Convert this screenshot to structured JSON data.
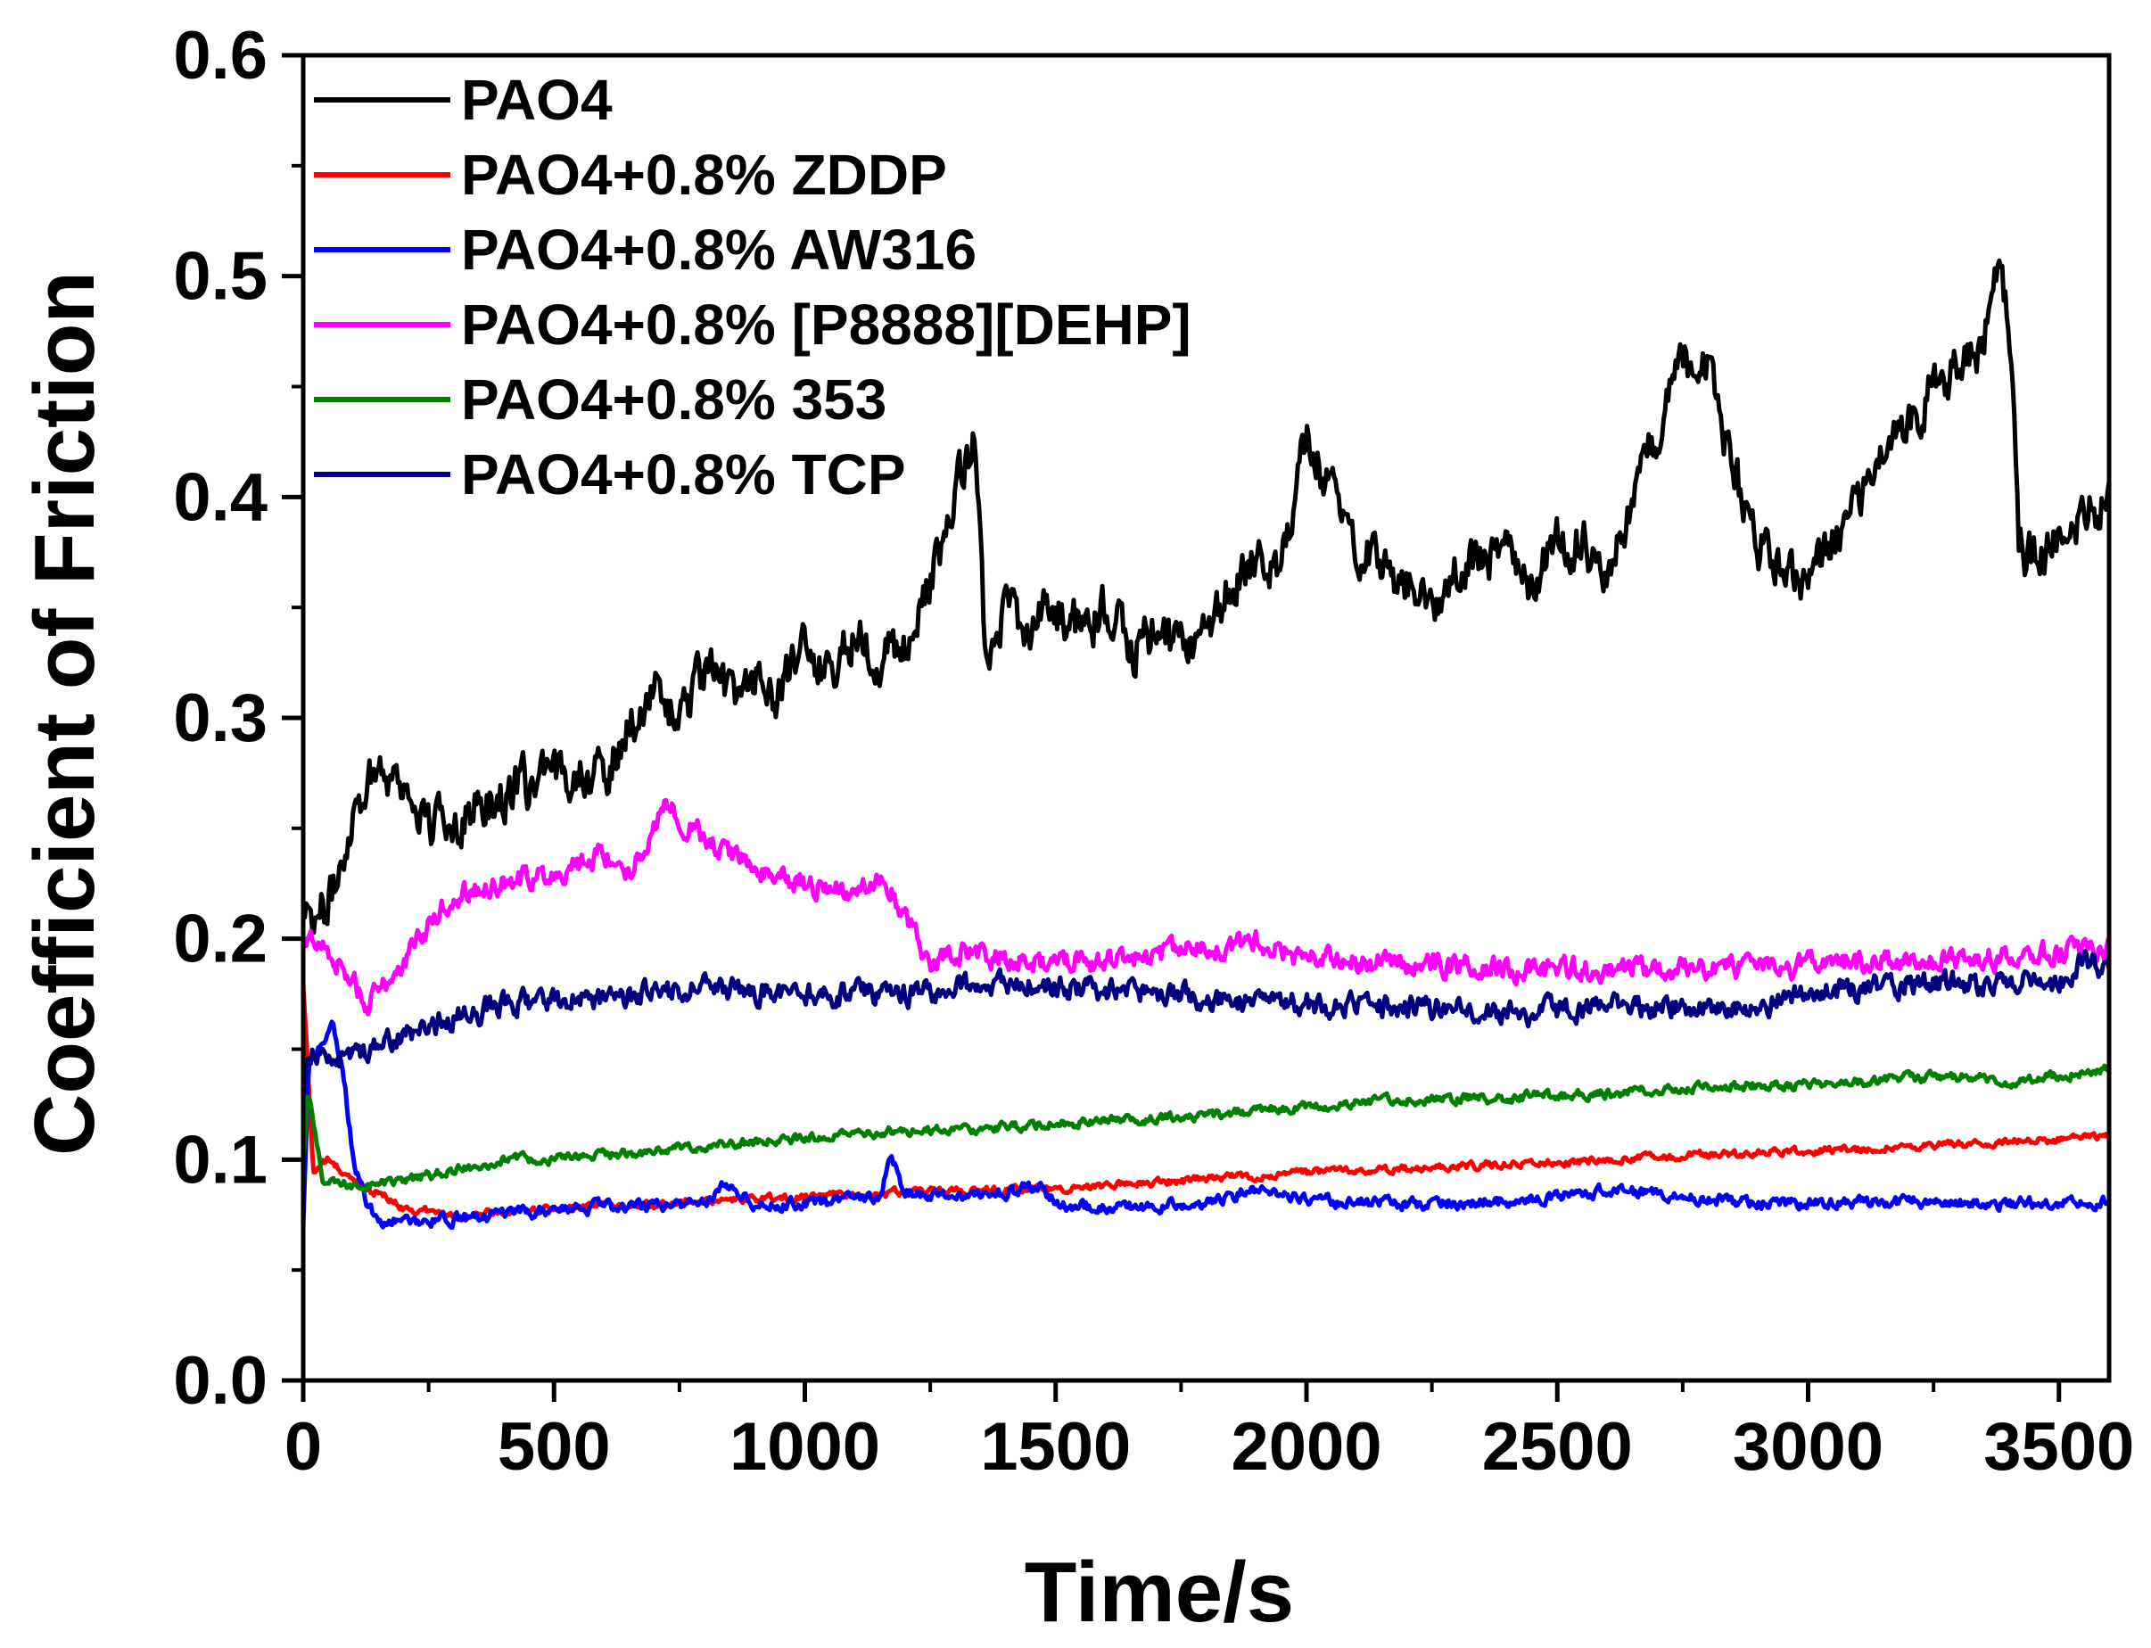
{
  "chart_data": {
    "type": "line",
    "title": "",
    "xlabel": "Time/s",
    "ylabel": "Coefficient of Friction",
    "xlim": [
      0,
      3600
    ],
    "ylim": [
      0.0,
      0.6
    ],
    "x_ticks": [
      0,
      500,
      1000,
      1500,
      2000,
      2500,
      3000,
      3500
    ],
    "x_tick_labels": [
      "0",
      "500",
      "1000",
      "1500",
      "2000",
      "2500",
      "3000",
      "3500"
    ],
    "y_ticks": [
      0.0,
      0.1,
      0.2,
      0.3,
      0.4,
      0.5,
      0.6
    ],
    "y_tick_labels": [
      "0.0",
      "0.1",
      "0.2",
      "0.3",
      "0.4",
      "0.5",
      "0.6"
    ],
    "grid": false,
    "legend_position": "top-left",
    "series": [
      {
        "name": "PAO4",
        "color": "#000000",
        "noise": 0.013,
        "x": [
          0,
          30,
          60,
          100,
          150,
          200,
          250,
          300,
          350,
          400,
          450,
          500,
          550,
          600,
          650,
          700,
          750,
          800,
          850,
          900,
          950,
          1000,
          1050,
          1100,
          1150,
          1200,
          1250,
          1300,
          1340,
          1360,
          1400,
          1450,
          1500,
          1550,
          1600,
          1650,
          1700,
          1750,
          1800,
          1850,
          1900,
          1950,
          2000,
          2050,
          2100,
          2150,
          2200,
          2250,
          2300,
          2350,
          2400,
          2450,
          2500,
          2550,
          2600,
          2650,
          2700,
          2750,
          2800,
          2850,
          2900,
          2950,
          3000,
          3050,
          3100,
          3150,
          3200,
          3250,
          3300,
          3350,
          3380,
          3400,
          3420,
          3450,
          3500,
          3550,
          3600
        ],
        "values": [
          0.22,
          0.21,
          0.22,
          0.26,
          0.28,
          0.27,
          0.25,
          0.255,
          0.26,
          0.265,
          0.27,
          0.27,
          0.28,
          0.27,
          0.3,
          0.31,
          0.3,
          0.32,
          0.31,
          0.32,
          0.31,
          0.33,
          0.32,
          0.34,
          0.33,
          0.33,
          0.36,
          0.4,
          0.43,
          0.33,
          0.35,
          0.34,
          0.35,
          0.34,
          0.35,
          0.33,
          0.34,
          0.33,
          0.34,
          0.36,
          0.37,
          0.37,
          0.43,
          0.4,
          0.38,
          0.37,
          0.36,
          0.35,
          0.37,
          0.37,
          0.38,
          0.36,
          0.38,
          0.38,
          0.36,
          0.4,
          0.43,
          0.46,
          0.46,
          0.41,
          0.38,
          0.37,
          0.36,
          0.38,
          0.4,
          0.43,
          0.43,
          0.45,
          0.46,
          0.47,
          0.5,
          0.48,
          0.38,
          0.37,
          0.38,
          0.39,
          0.4
        ]
      },
      {
        "name": "PAO4+0.8% ZDDP",
        "color": "#ff0000",
        "noise": 0.002,
        "x": [
          0,
          20,
          50,
          100,
          150,
          200,
          300,
          400,
          600,
          800,
          1000,
          1200,
          1500,
          2000,
          2500,
          3000,
          3500,
          3600
        ],
        "values": [
          0.18,
          0.095,
          0.1,
          0.09,
          0.085,
          0.078,
          0.075,
          0.076,
          0.079,
          0.081,
          0.083,
          0.085,
          0.087,
          0.094,
          0.099,
          0.104,
          0.109,
          0.111
        ]
      },
      {
        "name": "PAO4+0.8% AW316",
        "color": "#0000ff",
        "noise": 0.003,
        "x": [
          0,
          10,
          30,
          60,
          80,
          100,
          130,
          150,
          200,
          300,
          400,
          500,
          600,
          800,
          840,
          900,
          1000,
          1150,
          1170,
          1200,
          1300,
          1400,
          1470,
          1500,
          1600,
          1800,
          1900,
          2000,
          2200,
          2400,
          2600,
          2800,
          3000,
          3200,
          3400,
          3600
        ],
        "values": [
          0.07,
          0.14,
          0.15,
          0.16,
          0.14,
          0.1,
          0.078,
          0.072,
          0.072,
          0.073,
          0.075,
          0.077,
          0.079,
          0.08,
          0.09,
          0.08,
          0.08,
          0.083,
          0.103,
          0.085,
          0.084,
          0.085,
          0.088,
          0.08,
          0.078,
          0.08,
          0.087,
          0.082,
          0.08,
          0.081,
          0.086,
          0.082,
          0.08,
          0.081,
          0.08,
          0.081
        ]
      },
      {
        "name": "PAO4+0.8% [P8888][DEHP]",
        "color": "#ff00ff",
        "noise": 0.006,
        "x": [
          0,
          20,
          50,
          100,
          130,
          200,
          300,
          400,
          500,
          550,
          600,
          650,
          700,
          720,
          800,
          850,
          900,
          1000,
          1100,
          1150,
          1200,
          1250,
          1300,
          1400,
          1500,
          1700,
          1900,
          2000,
          2200,
          2500,
          2800,
          3000,
          3200,
          3400,
          3600
        ],
        "values": [
          0.195,
          0.2,
          0.195,
          0.18,
          0.17,
          0.19,
          0.22,
          0.225,
          0.23,
          0.235,
          0.24,
          0.23,
          0.25,
          0.26,
          0.245,
          0.24,
          0.23,
          0.225,
          0.22,
          0.23,
          0.21,
          0.19,
          0.195,
          0.19,
          0.19,
          0.192,
          0.198,
          0.19,
          0.188,
          0.186,
          0.187,
          0.188,
          0.19,
          0.192,
          0.195
        ]
      },
      {
        "name": "PAO4+0.8% 353",
        "color": "#008000",
        "noise": 0.0025,
        "x": [
          0,
          10,
          40,
          100,
          200,
          300,
          400,
          500,
          700,
          1000,
          1200,
          1500,
          1800,
          2000,
          2200,
          2400,
          2600,
          2800,
          3000,
          3200,
          3350,
          3400,
          3500,
          3600
        ],
        "values": [
          0.1,
          0.13,
          0.09,
          0.088,
          0.09,
          0.095,
          0.1,
          0.1,
          0.104,
          0.11,
          0.113,
          0.116,
          0.12,
          0.124,
          0.127,
          0.128,
          0.13,
          0.133,
          0.134,
          0.137,
          0.138,
          0.134,
          0.138,
          0.141
        ]
      },
      {
        "name": "PAO4+0.8% TCP",
        "color": "#000080",
        "noise": 0.006,
        "x": [
          0,
          10,
          50,
          100,
          200,
          300,
          400,
          500,
          700,
          800,
          1000,
          1200,
          1400,
          1500,
          1700,
          2000,
          2300,
          2400,
          2500,
          2700,
          2900,
          3000,
          3200,
          3400,
          3500,
          3550,
          3600
        ],
        "values": [
          0.13,
          0.15,
          0.145,
          0.148,
          0.155,
          0.165,
          0.17,
          0.172,
          0.175,
          0.178,
          0.175,
          0.175,
          0.18,
          0.178,
          0.175,
          0.17,
          0.168,
          0.165,
          0.168,
          0.17,
          0.17,
          0.175,
          0.18,
          0.18,
          0.18,
          0.19,
          0.185
        ]
      }
    ]
  }
}
